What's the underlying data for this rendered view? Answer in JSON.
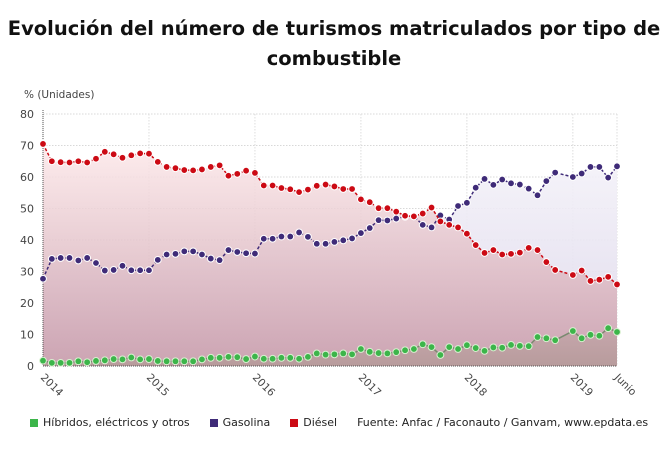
{
  "chart_data": {
    "type": "line",
    "title": "Evolución del número de turismos matriculados por tipo de combustible",
    "ylabel": "% (Unidades)",
    "ylim": [
      0,
      80
    ],
    "yticks": [
      "0",
      "10",
      "20",
      "30",
      "40",
      "50",
      "60",
      "70",
      "80"
    ],
    "xticks": [
      "2014",
      "2015",
      "2016",
      "2017",
      "2018",
      "2019",
      "Junio"
    ],
    "x_start": "2014-01",
    "x_end": "2019-06",
    "frequency": "monthly",
    "grid": true,
    "legend_position": "bottom",
    "source": "Fuente: Anfac / Faconauto / Ganvam, www.epdata.es",
    "series": [
      {
        "name": "Híbridos, eléctricos y otros",
        "color": "#3cb54a",
        "values": [
          1.7,
          1,
          1,
          1,
          1.5,
          1.2,
          1.6,
          1.8,
          2.2,
          2.1,
          2.7,
          2.1,
          2.2,
          1.6,
          1.5,
          1.5,
          1.5,
          1.5,
          2.1,
          2.6,
          2.6,
          2.9,
          2.8,
          2.2,
          3,
          2.3,
          2.3,
          2.6,
          2.6,
          2.3,
          2.9,
          4,
          3.6,
          3.7,
          4,
          3.7,
          5.4,
          4.5,
          4.1,
          4,
          4.4,
          5,
          5.4,
          6.9,
          6,
          3.5,
          6,
          5.4,
          6.6,
          5.7,
          4.8,
          5.9,
          5.8,
          6.7,
          6.4,
          6.3,
          9.2,
          8.8,
          8.2,
          null,
          11.1,
          8.8,
          9.9,
          9.6,
          12,
          10.8
        ]
      },
      {
        "name": "Gasolina",
        "color": "#3f2b78",
        "values": [
          27.7,
          34,
          34.3,
          34.3,
          33.5,
          34.3,
          32.7,
          30.3,
          30.5,
          31.8,
          30.4,
          30.4,
          30.4,
          33.7,
          35.4,
          35.6,
          36.4,
          36.4,
          35.4,
          34.1,
          33.6,
          36.8,
          36.2,
          35.8,
          35.7,
          40.4,
          40.4,
          41.1,
          41.1,
          42.4,
          41,
          38.8,
          38.8,
          39.4,
          39.9,
          40.5,
          42.2,
          43.8,
          46.3,
          46.2,
          46.8,
          47.4,
          47.5,
          44.8,
          44,
          47.8,
          46.5,
          50.8,
          51.8,
          56.6,
          59.4,
          57.5,
          59.2,
          58,
          57.6,
          56.3,
          54.2,
          58.7,
          61.4,
          null,
          60,
          61.1,
          63.2,
          63.2,
          59.8,
          63.4
        ]
      },
      {
        "name": "Diésel",
        "color": "#cc0a14",
        "values": [
          70.5,
          65,
          64.7,
          64.6,
          65,
          64.6,
          65.8,
          68,
          67.2,
          66.1,
          66.9,
          67.5,
          67.4,
          64.8,
          63.2,
          62.8,
          62.2,
          62.1,
          62.4,
          63.2,
          63.7,
          60.4,
          61,
          62,
          61.3,
          57.3,
          57.3,
          56.5,
          56.1,
          55.2,
          56,
          57.2,
          57.6,
          57,
          56.2,
          56.2,
          52.9,
          52,
          50.1,
          50.1,
          49,
          47.7,
          47.5,
          48.4,
          50.3,
          45.9,
          44.8,
          44,
          42,
          38.4,
          35.9,
          36.8,
          35.4,
          35.6,
          36,
          37.5,
          36.8,
          33,
          30.5,
          null,
          28.9,
          30.3,
          27,
          27.4,
          28.3,
          25.9
        ]
      }
    ]
  }
}
